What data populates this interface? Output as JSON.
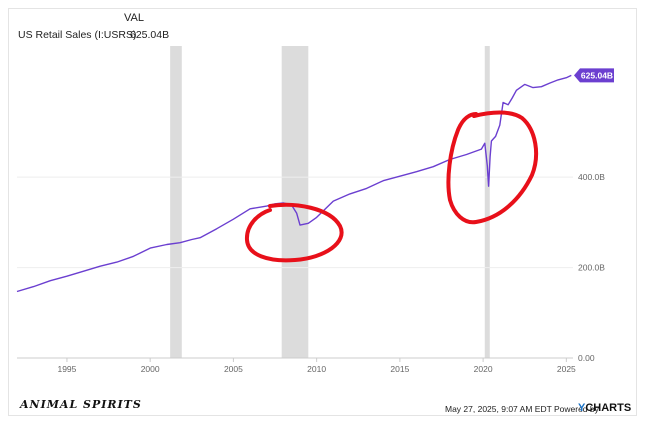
{
  "header": {
    "column_label": "VAL",
    "series_label": "US Retail Sales (I:USRS)",
    "series_value": "625.04B"
  },
  "footer": {
    "brand": "ANIMAL SPIRITS",
    "note": "May 27, 2025, 9:07 AM EDT Powered by",
    "logo_y": "Y",
    "logo_rest": "CHARTS"
  },
  "colors": {
    "line": "#6b3fd0",
    "recession": "#dcdcdc",
    "annotation": "#e8101a",
    "grid": "#eeeeee"
  },
  "chart_data": {
    "type": "line",
    "title": "",
    "xlabel": "",
    "ylabel": "",
    "xlim": [
      1992.0,
      2025.4
    ],
    "ylim": [
      0,
      690
    ],
    "x_ticks": [
      1995,
      2000,
      2005,
      2010,
      2015,
      2020,
      2025
    ],
    "x_tick_labels": [
      "1995",
      "2000",
      "2005",
      "2010",
      "2015",
      "2020",
      "2025"
    ],
    "y_ticks": [
      0,
      200,
      400
    ],
    "y_tick_labels": [
      "0.00",
      "200.0B",
      "400.0B"
    ],
    "grid": true,
    "end_label": "625.04B",
    "recessions": [
      [
        2001.2,
        2001.9
      ],
      [
        2007.9,
        2009.5
      ],
      [
        2020.1,
        2020.4
      ]
    ],
    "series": [
      {
        "name": "US Retail Sales (I:USRS)",
        "unit": "B",
        "x": [
          1992.0,
          1993.0,
          1994.0,
          1995.0,
          1996.0,
          1997.0,
          1998.0,
          1999.0,
          2000.0,
          2001.0,
          2001.8,
          2002.5,
          2003.0,
          2004.0,
          2005.0,
          2006.0,
          2007.0,
          2007.5,
          2008.0,
          2008.5,
          2008.8,
          2009.0,
          2009.5,
          2010.0,
          2011.0,
          2012.0,
          2013.0,
          2014.0,
          2015.0,
          2016.0,
          2017.0,
          2018.0,
          2019.0,
          2019.9,
          2020.1,
          2020.25,
          2020.33,
          2020.42,
          2020.5,
          2020.75,
          2021.0,
          2021.2,
          2021.5,
          2021.75,
          2022.0,
          2022.5,
          2023.0,
          2023.5,
          2024.0,
          2024.5,
          2025.0,
          2025.3
        ],
        "y": [
          147,
          158,
          171,
          181,
          192,
          203,
          212,
          225,
          243,
          251,
          255,
          262,
          266,
          286,
          307,
          330,
          336,
          341,
          343,
          338,
          320,
          294,
          298,
          311,
          347,
          363,
          375,
          392,
          402,
          412,
          423,
          439,
          450,
          462,
          475,
          425,
          380,
          445,
          480,
          490,
          515,
          565,
          560,
          575,
          592,
          605,
          598,
          600,
          608,
          615,
          620,
          625.04
        ]
      }
    ]
  }
}
